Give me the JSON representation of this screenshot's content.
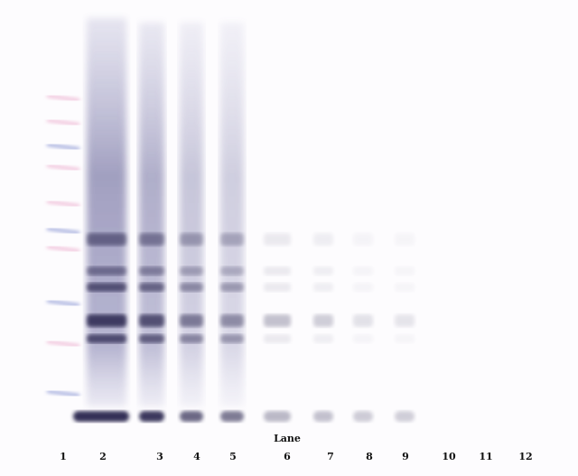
{
  "axis_label": "Lane",
  "lanes": [
    {
      "label": "1",
      "type": "marker"
    },
    {
      "label": "2",
      "intensity": 1.0
    },
    {
      "label": "3",
      "intensity": 0.85
    },
    {
      "label": "4",
      "intensity": 0.6
    },
    {
      "label": "5",
      "intensity": 0.5
    },
    {
      "label": "6",
      "intensity": 0.18
    },
    {
      "label": "7",
      "intensity": 0.14
    },
    {
      "label": "8",
      "intensity": 0.08
    },
    {
      "label": "9",
      "intensity": 0.07
    },
    {
      "label": "10",
      "intensity": 0
    },
    {
      "label": "11",
      "intensity": 0
    },
    {
      "label": "12",
      "intensity": 0
    }
  ],
  "colors": {
    "band": "#2a2850",
    "marker_blue": "#6a78c8",
    "marker_pink": "#e070a8"
  }
}
